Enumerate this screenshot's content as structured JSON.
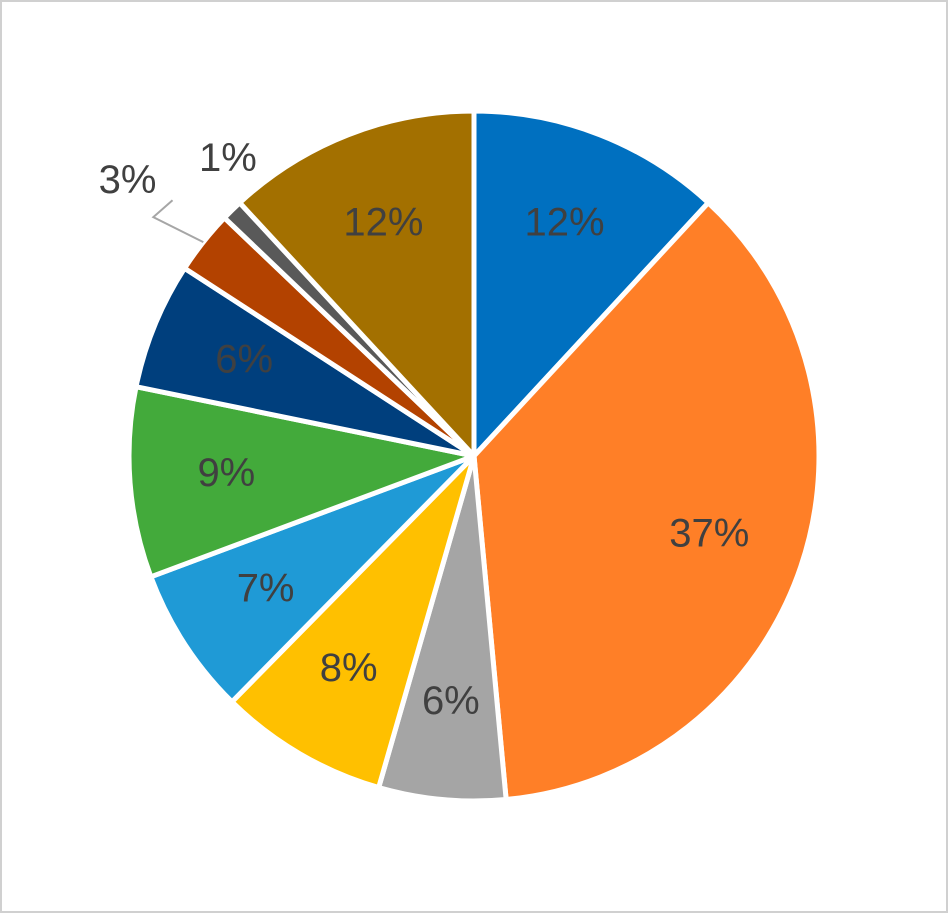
{
  "chart_data": {
    "type": "pie",
    "values": [
      12,
      37,
      6,
      8,
      7,
      9,
      6,
      3,
      1,
      12
    ],
    "value_labels": [
      "12%",
      "37%",
      "6%",
      "8%",
      "7%",
      "9%",
      "6%",
      "3%",
      "1%",
      "12%"
    ],
    "colors": [
      "#0070c0",
      "#ff7f27",
      "#a5a5a5",
      "#ffc000",
      "#1f9ad6",
      "#43aa3b",
      "#003f7d",
      "#b34200",
      "#595959",
      "#a37000"
    ]
  }
}
